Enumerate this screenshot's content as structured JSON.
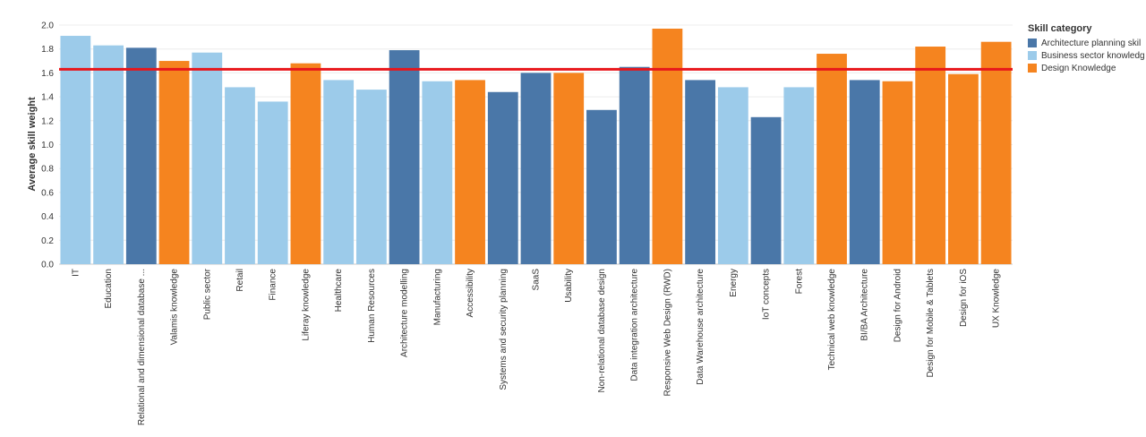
{
  "chart_data": {
    "type": "bar",
    "ylabel": "Average skill weight",
    "ylim": [
      0,
      2.0
    ],
    "yticks": [
      "0.0",
      "0.2",
      "0.4",
      "0.6",
      "0.8",
      "1.0",
      "1.2",
      "1.4",
      "1.6",
      "1.8",
      "2.0"
    ],
    "grid": true,
    "reference_line": {
      "value": 1.63,
      "color": "#e8161b"
    },
    "legend": {
      "title": "Skill category",
      "placement": "right",
      "entries": [
        {
          "label": "Architecture planning skil",
          "color": "#4a77a8"
        },
        {
          "label": "Business sector knowledg",
          "color": "#9ccbea"
        },
        {
          "label": "Design Knowledge",
          "color": "#f5841f"
        }
      ]
    },
    "categories": [
      "IT",
      "Education",
      "Relational and dimensional database ...",
      "Valamis knowledge",
      "Public sector",
      "Retail",
      "Finance",
      "Liferay knowledge",
      "Healthcare",
      "Human Resources",
      "Architecture modelling",
      "Manufacturing",
      "Accessibility",
      "Systems and security planning",
      "SaaS",
      "Usability",
      "Non-relational database design",
      "Data integration architecture",
      "Responsive Web Design (RWD)",
      "Data Warehouse architecture",
      "Energy",
      "IoT concepts",
      "Forest",
      "Technical web knowledge",
      "BI/BA Architecture",
      "Design for Android",
      "Design for Mobile & Tablets",
      "Design for iOS",
      "UX Knowledge"
    ],
    "values": [
      1.91,
      1.83,
      1.81,
      1.7,
      1.77,
      1.48,
      1.36,
      1.68,
      1.54,
      1.46,
      1.79,
      1.53,
      1.54,
      1.44,
      1.6,
      1.6,
      1.29,
      1.65,
      1.97,
      1.54,
      1.48,
      1.23,
      1.48,
      1.76,
      1.54,
      1.53,
      1.82,
      1.59,
      1.86
    ],
    "bar_category": [
      1,
      1,
      0,
      2,
      1,
      1,
      1,
      2,
      1,
      1,
      0,
      1,
      2,
      0,
      0,
      2,
      0,
      0,
      2,
      0,
      1,
      0,
      1,
      2,
      0,
      2,
      2,
      2,
      2
    ]
  }
}
